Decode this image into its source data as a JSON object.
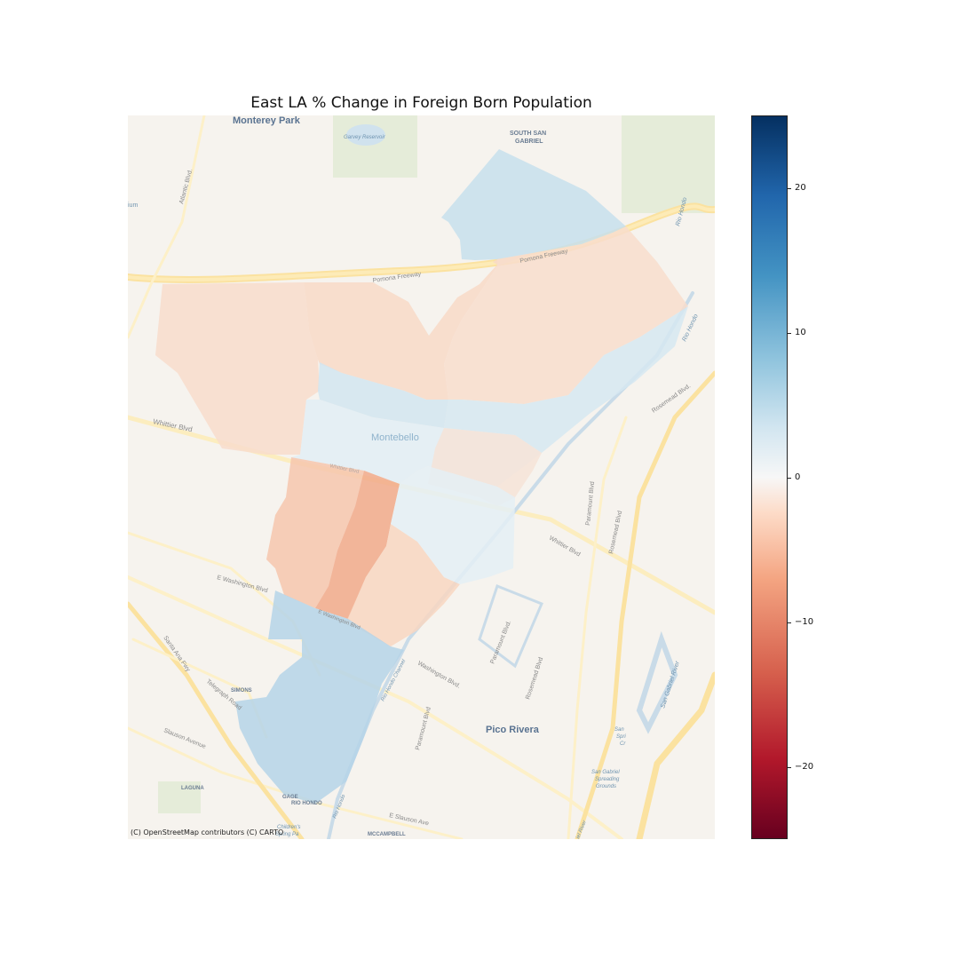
{
  "title": "East LA % Change in Foreign Born Population",
  "attribution": "(C) OpenStreetMap contributors (C) CARTO",
  "basemap_labels": {
    "monterey_park": "Monterey Park",
    "garvey_reservoir": "Garvey Reservoir",
    "south_san_gabriel_1": "SOUTH SAN",
    "south_san_gabriel_2": "GABRIEL",
    "atlantic_blvd": "Atlantic Blvd.",
    "pomona_freeway": "Pomona Freeway",
    "pomona_freeway_east": "Pomona Freeway",
    "rio_hondo_north": "Rio Hondo",
    "rio_hondo_east": "Rio Hondo",
    "rosemead_blvd_north": "Rosemead Blvd.",
    "whittier_blvd": "Whittier Blvd",
    "montebello": "Montebello",
    "whittier_blvd_center": "Whittier Blvd",
    "paramount_blvd_north": "Paramount Blvd",
    "rosemead_blvd_mid": "Rosemead Blvd",
    "whittier_blvd_east": "Whittier Blvd",
    "e_washington_blvd": "E Washington Blvd",
    "e_washington_blvd_2": "E Washington Blvd",
    "rio_hondo_channel": "Rio Hondo Channel",
    "washington_blvd": "Washington Blvd.",
    "paramount_blvd_south": "Paramount Blvd.",
    "paramount_blvd_low": "Paramount Blvd",
    "rosemead_blvd_south": "Rosemead Blvd",
    "san_gabriel_river": "San Gabriel River",
    "santa_ana_fwy": "Santa Ana Fwy",
    "telegraph_road": "Telegraph Road",
    "simons": "SIMONS",
    "slauson_avenue": "Slauson Avenue",
    "pico_rivera": "Pico Rivera",
    "san_gabriel_spreading_1": "San Gabriel",
    "san_gabriel_spreading_2": "Spreading",
    "san_gabriel_spreading_3": "Grounds",
    "laguna": "LAGUNA",
    "gage": "GAGE",
    "rio_hondo": "RIO HONDO",
    "e_slauson_ave": "E Slauson Ave",
    "mccampbell": "MCCAMPBELL",
    "childrens": "Children's",
    "spring_pa": "Spring Pa",
    "rio_hondo_ch": "Rio Hondo",
    "san_gab_river_s": "iel River",
    "spring_cr_1": "San",
    "spring_cr_2": "Spri",
    "spring_cr_3": "Cr",
    "elium": "ium"
  },
  "colorbar": {
    "colormap": "RdBu",
    "min": -25,
    "max": 25,
    "ticks": [
      {
        "label": "20",
        "value": 20
      },
      {
        "label": "10",
        "value": 10
      },
      {
        "label": "0",
        "value": 0
      },
      {
        "label": "−10",
        "value": -10
      },
      {
        "label": "−20",
        "value": -20
      }
    ]
  },
  "regions": [
    {
      "id": "tract-north-blue",
      "pct_change": 4.5,
      "color": "#c7dfec"
    },
    {
      "id": "tract-northwest",
      "pct_change": -3.2,
      "color": "#f8dccb"
    },
    {
      "id": "tract-north-center",
      "pct_change": -3.5,
      "color": "#f8d9c7"
    },
    {
      "id": "tract-northeast",
      "pct_change": -3.0,
      "color": "#f8ddcc"
    },
    {
      "id": "tract-band-west",
      "pct_change": 3.5,
      "color": "#d2e5f0"
    },
    {
      "id": "tract-band-east",
      "pct_change": 3.0,
      "color": "#d6e7f1"
    },
    {
      "id": "tract-montebello-center",
      "pct_change": 1.5,
      "color": "#e2edf4"
    },
    {
      "id": "tract-east-mid",
      "pct_change": -2.0,
      "color": "#f6e3d7"
    },
    {
      "id": "tract-west-orange",
      "pct_change": -5.5,
      "color": "#f6c6ad"
    },
    {
      "id": "tract-dark-orange",
      "pct_change": -8.5,
      "color": "#f1a98a"
    },
    {
      "id": "tract-peach",
      "pct_change": -4.0,
      "color": "#f8d6c1"
    },
    {
      "id": "tract-south-light",
      "pct_change": 1.2,
      "color": "#e4eef4"
    },
    {
      "id": "tract-south-blue",
      "pct_change": 6.5,
      "color": "#b5d4e7"
    }
  ]
}
